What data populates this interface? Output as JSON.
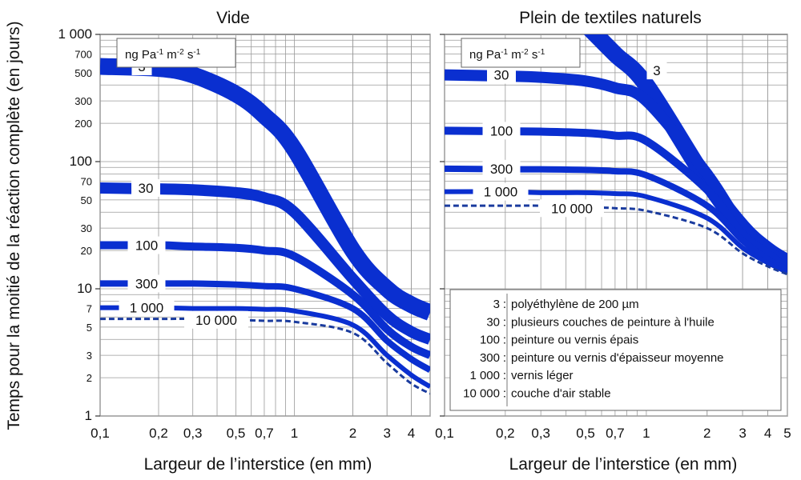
{
  "chart_data": [
    {
      "type": "line",
      "title": "Vide",
      "xlabel": "Largeur de l’interstice (en mm)",
      "ylabel": "Temps pour la moitié de la réaction complète (en jours)",
      "x_scale": "log",
      "y_scale": "log",
      "xlim": [
        0.1,
        5
      ],
      "ylim": [
        1,
        1000
      ],
      "x_ticks": [
        "0,1",
        "0,2",
        "0,3",
        "0,5",
        "0,7",
        "1",
        "2",
        "3",
        "4"
      ],
      "y_ticks": [
        "1",
        "2",
        "3",
        "5",
        "7",
        "10",
        "20",
        "30",
        "50",
        "70",
        "100",
        "200",
        "300",
        "500",
        "700",
        "1 000"
      ],
      "unit_label": {
        "base": "ng Pa",
        "e1": "-1",
        "mid1": " m",
        "e2": "-2",
        "mid2": " s",
        "e3": "-1"
      },
      "series": [
        {
          "name": "3",
          "x": [
            0.1,
            0.2,
            0.3,
            0.5,
            0.7,
            1,
            2,
            3,
            4,
            5
          ],
          "y": [
            560,
            540,
            480,
            340,
            230,
            125,
            20,
            10,
            7.5,
            6.5
          ]
        },
        {
          "name": "30",
          "x": [
            0.1,
            0.2,
            0.3,
            0.5,
            0.7,
            1,
            2,
            3,
            4,
            5
          ],
          "y": [
            62,
            61,
            60,
            57,
            52,
            40,
            12,
            6.2,
            4.6,
            4
          ]
        },
        {
          "name": "100",
          "x": [
            0.1,
            0.2,
            0.3,
            0.5,
            0.7,
            1,
            2,
            3,
            4,
            5
          ],
          "y": [
            22,
            22,
            21.5,
            21,
            20,
            18,
            9,
            4.8,
            3.5,
            3
          ]
        },
        {
          "name": "300",
          "x": [
            0.1,
            0.2,
            0.3,
            0.5,
            0.7,
            1,
            2,
            3,
            4,
            5
          ],
          "y": [
            11,
            11,
            11,
            10.8,
            10.5,
            10,
            7,
            3.9,
            2.8,
            2.3
          ]
        },
        {
          "name": "1 000",
          "x": [
            0.1,
            0.2,
            0.3,
            0.5,
            0.7,
            1,
            2,
            3,
            4,
            5
          ],
          "y": [
            7.1,
            7.1,
            7,
            7,
            6.9,
            6.7,
            5.2,
            3,
            2.1,
            1.7
          ]
        },
        {
          "name": "10 000",
          "x": [
            0.1,
            0.2,
            0.3,
            0.5,
            0.7,
            1,
            2,
            3,
            4,
            5
          ],
          "y": [
            5.8,
            5.8,
            5.8,
            5.7,
            5.6,
            5.5,
            4.5,
            2.6,
            1.8,
            1.5
          ]
        }
      ]
    },
    {
      "type": "line",
      "title": "Plein de textiles naturels",
      "xlabel": "Largeur de l’interstice (en mm)",
      "x_scale": "log",
      "y_scale": "log",
      "xlim": [
        0.1,
        5
      ],
      "ylim": [
        1,
        1000
      ],
      "x_ticks": [
        "0,1",
        "0,2",
        "0,3",
        "0,5",
        "0,7",
        "1",
        "2",
        "3",
        "4",
        "5"
      ],
      "unit_label": {
        "base": "ng Pa",
        "e1": "-1",
        "mid1": " m",
        "e2": "-2",
        "mid2": " s",
        "e3": "-1"
      },
      "series": [
        {
          "name": "3",
          "x": [
            0.5,
            0.7,
            1,
            2,
            3,
            4,
            5
          ],
          "y": [
            1200,
            700,
            400,
            70,
            30,
            20,
            16
          ]
        },
        {
          "name": "30",
          "x": [
            0.1,
            0.2,
            0.3,
            0.5,
            0.7,
            1,
            2,
            3,
            4,
            5
          ],
          "y": [
            480,
            470,
            460,
            430,
            380,
            300,
            80,
            30,
            20,
            15
          ]
        },
        {
          "name": "100",
          "x": [
            0.1,
            0.2,
            0.3,
            0.5,
            0.7,
            1,
            2,
            3,
            4,
            5
          ],
          "y": [
            175,
            173,
            172,
            168,
            160,
            145,
            60,
            27,
            19,
            14.5
          ]
        },
        {
          "name": "300",
          "x": [
            0.1,
            0.2,
            0.3,
            0.5,
            0.7,
            1,
            2,
            3,
            4,
            5
          ],
          "y": [
            88,
            87,
            87,
            86,
            84,
            78,
            45,
            24,
            17,
            14
          ]
        },
        {
          "name": "1 000",
          "x": [
            0.1,
            0.2,
            0.3,
            0.5,
            0.7,
            1,
            2,
            3,
            4,
            5
          ],
          "y": [
            58,
            58,
            57,
            57,
            56,
            53,
            36,
            21,
            16,
            13.5
          ]
        },
        {
          "name": "10 000",
          "x": [
            0.1,
            0.2,
            0.3,
            0.5,
            0.7,
            1,
            2,
            3,
            4,
            5
          ],
          "y": [
            45,
            45,
            45,
            44,
            43,
            41,
            30,
            19,
            15,
            13
          ]
        }
      ],
      "legend": {
        "placement": "bottom-right",
        "entries": [
          {
            "key": "3",
            "sep": ":",
            "text": "polyéthylène de 200 µm"
          },
          {
            "key": "30",
            "sep": ":",
            "text": "plusieurs couches de peinture à l'huile"
          },
          {
            "key": "100",
            "sep": ":",
            "text": "peinture ou vernis épais"
          },
          {
            "key": "300",
            "sep": ":",
            "text": "peinture ou vernis d'épaisseur moyenne"
          },
          {
            "key": "1 000",
            "sep": ":",
            "text": "vernis léger"
          },
          {
            "key": "10 000",
            "sep": ":",
            "text": "couche d'air stable"
          }
        ]
      }
    }
  ],
  "colors": {
    "curve": "#0a2fd0",
    "dashed": "#1a3b9e",
    "grid": "#9a9a9a",
    "frame": "#555555"
  }
}
